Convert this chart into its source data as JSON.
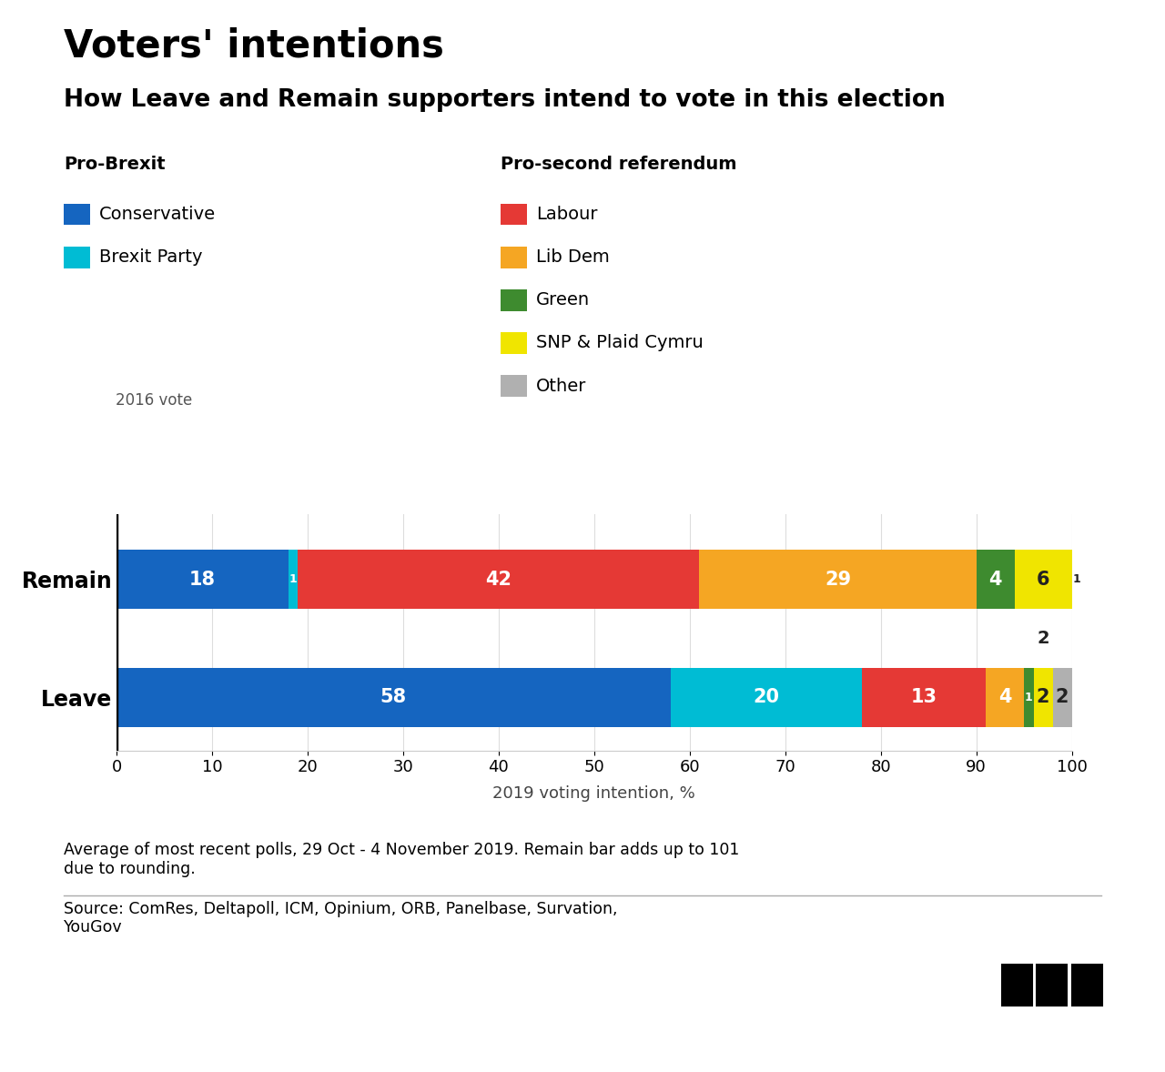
{
  "title": "Voters' intentions",
  "subtitle": "How Leave and Remain supporters intend to vote in this election",
  "xlabel": "2019 voting intention, %",
  "background_color": "#ffffff",
  "legend_left_title": "Pro-Brexit",
  "legend_right_title": "Pro-second referendum",
  "parties": [
    "Conservative",
    "Brexit Party",
    "Labour",
    "Lib Dem",
    "Green",
    "SNP & Plaid Cymru",
    "Other"
  ],
  "remain_data": [
    18,
    1,
    42,
    29,
    4,
    6,
    1
  ],
  "leave_data": [
    58,
    20,
    13,
    4,
    1,
    2,
    2
  ],
  "footnote": "Average of most recent polls, 29 Oct - 4 November 2019. Remain bar adds up to 101\ndue to rounding.",
  "source": "Source: ComRes, Deltapoll, ICM, Opinium, ORB, Panelbase, Survation,\nYouGov",
  "colors": {
    "Conservative": "#1565C0",
    "Brexit Party": "#00BCD4",
    "Labour": "#E53935",
    "Lib Dem": "#F5A623",
    "Green": "#3E8B2F",
    "SNP & Plaid Cymru": "#F0E500",
    "Other": "#B0B0B0"
  },
  "title_fontsize": 30,
  "subtitle_fontsize": 19,
  "legend_fontsize": 14,
  "bar_label_fontsize": 15,
  "axis_fontsize": 13
}
